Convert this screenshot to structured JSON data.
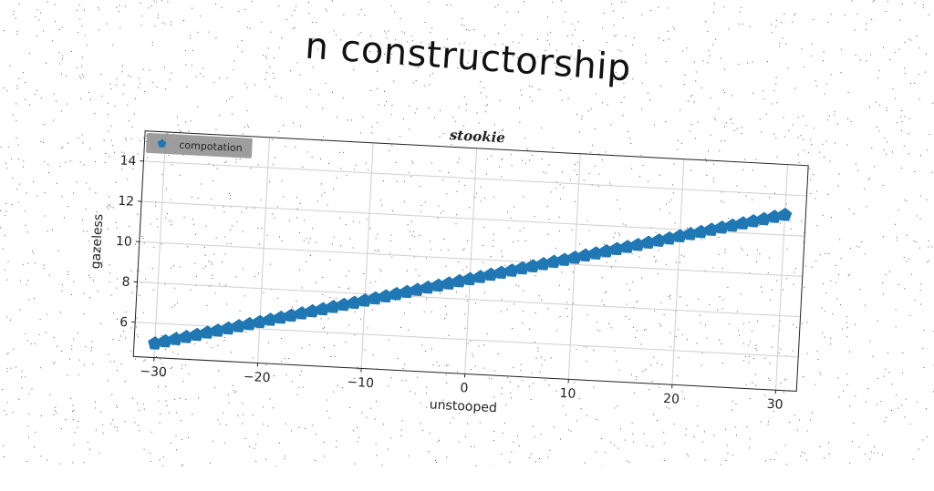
{
  "figure_title": "n constructorship",
  "chart_data": {
    "type": "scatter",
    "title": "stookie",
    "xlabel": "unstooped",
    "ylabel": "gazeless",
    "xlim": [
      -32,
      32
    ],
    "ylim": [
      4.3,
      15.5
    ],
    "xticks": [
      -30,
      -20,
      -10,
      0,
      10,
      20,
      30
    ],
    "xtick_labels": [
      "−30",
      "−20",
      "−10",
      "0",
      "10",
      "20",
      "30"
    ],
    "yticks": [
      6,
      8,
      10,
      12,
      14
    ],
    "ytick_labels": [
      "6",
      "8",
      "10",
      "12",
      "14"
    ],
    "grid": true,
    "legend_position": "top-left",
    "marker": "pentagon",
    "series": [
      {
        "name": "compotation",
        "color": "#1f77b4",
        "x": [
          -30,
          -29,
          -28,
          -27,
          -26,
          -25,
          -24,
          -23,
          -22,
          -21,
          -20,
          -19,
          -18,
          -17,
          -16,
          -15,
          -14,
          -13,
          -12,
          -11,
          -10,
          -9,
          -8,
          -7,
          -6,
          -5,
          -4,
          -3,
          -2,
          -1,
          0,
          1,
          2,
          3,
          4,
          5,
          6,
          7,
          8,
          9,
          10,
          11,
          12,
          13,
          14,
          15,
          16,
          17,
          18,
          19,
          20,
          21,
          22,
          23,
          24,
          25,
          26,
          27,
          28,
          29,
          30
        ],
        "y": [
          5.0,
          5.13,
          5.27,
          5.4,
          5.53,
          5.67,
          5.8,
          5.93,
          6.07,
          6.2,
          6.33,
          6.47,
          6.6,
          6.73,
          6.87,
          7.0,
          7.13,
          7.27,
          7.4,
          7.53,
          7.67,
          7.8,
          7.93,
          8.07,
          8.2,
          8.33,
          8.47,
          8.6,
          8.73,
          8.87,
          9.0,
          9.13,
          9.27,
          9.4,
          9.53,
          9.67,
          9.8,
          9.93,
          10.07,
          10.2,
          10.33,
          10.47,
          10.6,
          10.73,
          10.87,
          11.0,
          11.13,
          11.27,
          11.4,
          11.53,
          11.67,
          11.8,
          11.93,
          12.07,
          12.2,
          12.33,
          12.47,
          12.6,
          12.73,
          12.87,
          13.0
        ]
      }
    ]
  }
}
